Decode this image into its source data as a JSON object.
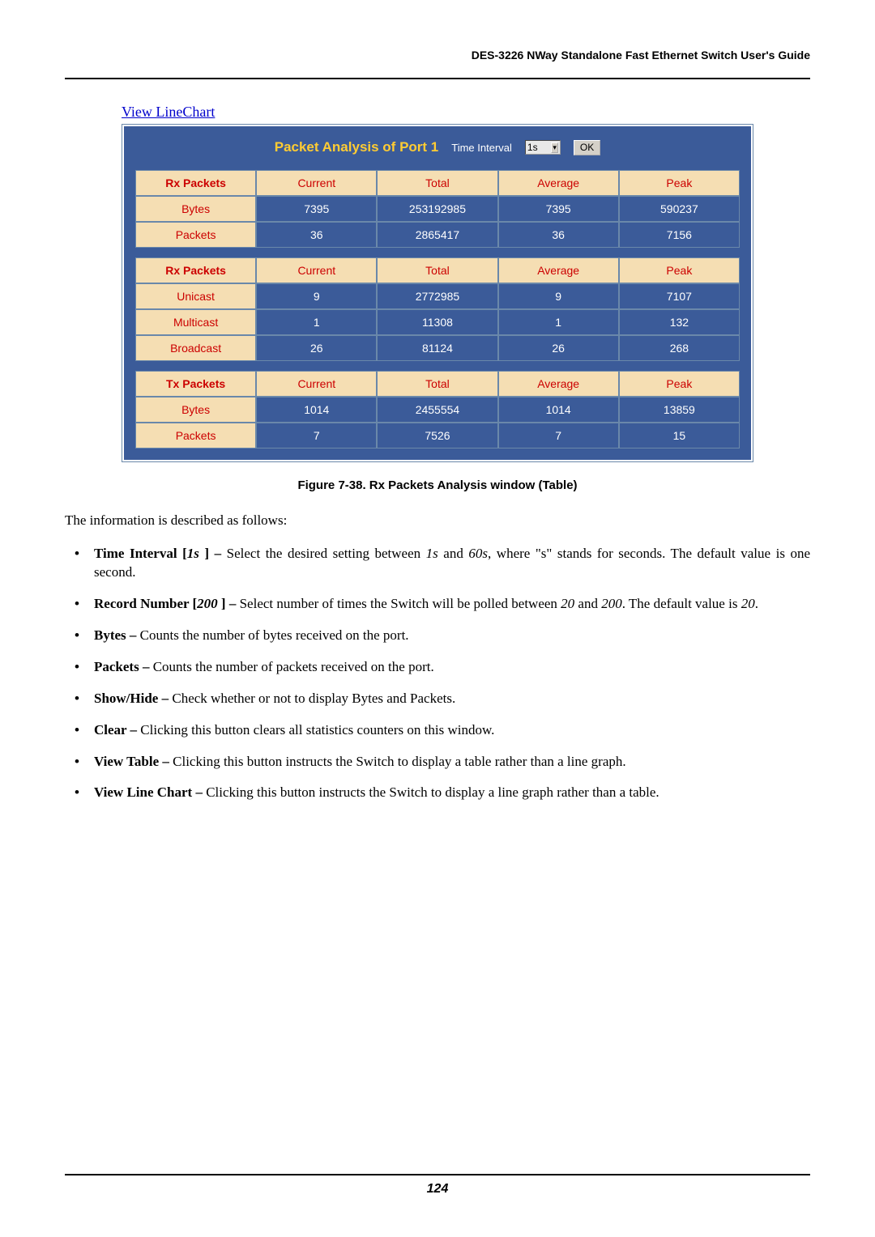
{
  "header": "DES-3226 NWay Standalone Fast Ethernet Switch User's Guide",
  "link_text": "View LineChart",
  "panel": {
    "title": "Packet Analysis of Port 1",
    "time_interval_label": "Time Interval",
    "time_interval_value": "1s",
    "ok_label": "OK",
    "title_color": "#ffcc33",
    "bg_color": "#3b5b99",
    "header_cell_bg": "#f5deb3",
    "header_cell_color": "#cc0000",
    "border_color": "#6a88aa"
  },
  "tables": [
    {
      "head": "Rx Packets",
      "columns": [
        "Current",
        "Total",
        "Average",
        "Peak"
      ],
      "rows": [
        {
          "label": "Bytes",
          "cells": [
            "7395",
            "253192985",
            "7395",
            "590237"
          ]
        },
        {
          "label": "Packets",
          "cells": [
            "36",
            "2865417",
            "36",
            "7156"
          ]
        }
      ]
    },
    {
      "head": "Rx Packets",
      "columns": [
        "Current",
        "Total",
        "Average",
        "Peak"
      ],
      "rows": [
        {
          "label": "Unicast",
          "cells": [
            "9",
            "2772985",
            "9",
            "7107"
          ]
        },
        {
          "label": "Multicast",
          "cells": [
            "1",
            "11308",
            "1",
            "132"
          ]
        },
        {
          "label": "Broadcast",
          "cells": [
            "26",
            "81124",
            "26",
            "268"
          ]
        }
      ]
    },
    {
      "head": "Tx Packets",
      "columns": [
        "Current",
        "Total",
        "Average",
        "Peak"
      ],
      "rows": [
        {
          "label": "Bytes",
          "cells": [
            "1014",
            "2455554",
            "1014",
            "13859"
          ]
        },
        {
          "label": "Packets",
          "cells": [
            "7",
            "7526",
            "7",
            "15"
          ]
        }
      ]
    }
  ],
  "caption": "Figure 7-38.  Rx Packets Analysis window (Table)",
  "intro": "The information is described as follows:",
  "bullets": [
    {
      "bold": "Time Interval [",
      "ital": "1s ",
      "bold2": "] – ",
      "rest": "Select the desired setting between ",
      "ital2": "1s",
      "rest2": " and ",
      "ital3": "60s",
      "rest3": ", where \"s\" stands for seconds. The default value is one second."
    },
    {
      "bold": "Record Number [",
      "ital": "200 ",
      "bold2": "] – ",
      "rest": "Select number of times the Switch will be polled between ",
      "ital2": "20",
      "rest2": " and ",
      "ital3": "200",
      "rest3": ". The default value is ",
      "ital4": "20",
      "rest4": "."
    },
    {
      "bold": "Bytes – ",
      "rest": "Counts the number of bytes received on the port."
    },
    {
      "bold": "Packets – ",
      "rest": "Counts the number of packets received on the port."
    },
    {
      "bold": "Show/Hide – ",
      "rest": "Check whether or not to display Bytes and Packets."
    },
    {
      "bold": "Clear – ",
      "rest": "Clicking this button clears all statistics counters on this window."
    },
    {
      "bold": "View Table – ",
      "rest": "Clicking this button instructs the Switch to display a table rather than a line graph."
    },
    {
      "bold": "View Line Chart – ",
      "rest": "Clicking this button instructs the Switch to display a line graph rather than a table."
    }
  ],
  "page_number": "124"
}
